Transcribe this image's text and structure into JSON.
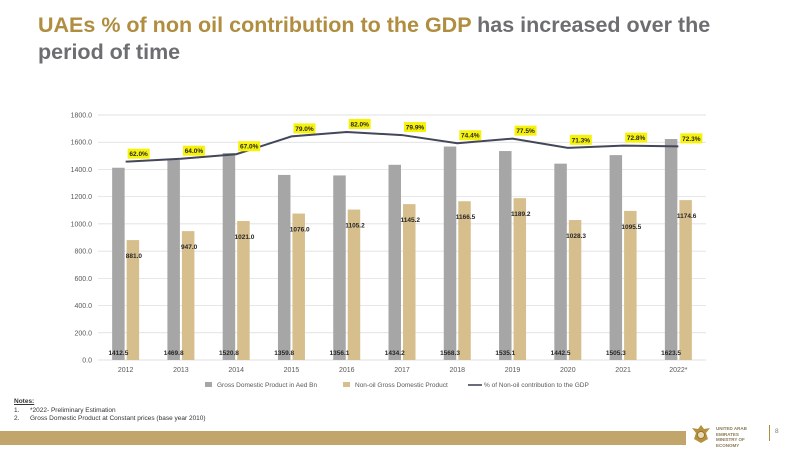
{
  "header": {
    "title_accent": "UAEs % of non oil contribution to the GDP",
    "title_rest": " has increased over the period of time"
  },
  "colors": {
    "gdp_bar": "#a6a6a6",
    "nonoil_bar": "#d6bf8d",
    "line": "#44475a",
    "label_highlight": "#f7f20a",
    "accent": "#b08d3f",
    "footer_bar": "#c2a56a"
  },
  "chart_data": {
    "type": "bar",
    "categories": [
      "2012",
      "2013",
      "2014",
      "2015",
      "2016",
      "2017",
      "2018",
      "2019",
      "2020",
      "2021",
      "2022*"
    ],
    "series": [
      {
        "name": "Gross Domestic Product in Aed Bn",
        "type": "bar",
        "values": [
          1412.5,
          1469.8,
          1520.8,
          1359.8,
          1356.1,
          1434.2,
          1568.3,
          1535.1,
          1442.5,
          1505.3,
          1623.5
        ]
      },
      {
        "name": "Non-oil Gross Domestic Product",
        "type": "bar",
        "values": [
          881.0,
          947.0,
          1021.0,
          1076.0,
          1105.2,
          1145.2,
          1166.5,
          1189.2,
          1028.3,
          1095.5,
          1174.6
        ]
      },
      {
        "name": "% of Non-oil contribution to the GDP",
        "type": "line",
        "values": [
          62.0,
          64.0,
          67.0,
          79.0,
          82.0,
          79.9,
          74.4,
          77.5,
          71.3,
          72.8,
          72.3
        ]
      }
    ],
    "gdp_labels": [
      "1412.5",
      "1469.8",
      "1520.8",
      "1359.8",
      "1356.1",
      "1434.2",
      "1568.3",
      "1535.1",
      "1442.5",
      "1505.3",
      "1623.5"
    ],
    "nonoil_labels": [
      "881.0",
      "947.0",
      "1021.0",
      "1076.0",
      "1105.2",
      "1145.2",
      "1166.5",
      "1189.2",
      "1028.3",
      "1095.5",
      "1174.6"
    ],
    "pct_labels": [
      "62.0%",
      "64.0%",
      "67.0%",
      "79.0%",
      "82.0%",
      "79.9%",
      "74.4%",
      "77.5%",
      "71.3%",
      "72.8%",
      "72.3%"
    ],
    "y_ticks": [
      "0.0",
      "200.0",
      "400.0",
      "600.0",
      "800.0",
      "1000.0",
      "1200.0",
      "1400.0",
      "1600.0",
      "1800.0"
    ],
    "ylim": [
      0,
      1800
    ],
    "pct_scale": [
      -71.4,
      93.4
    ],
    "grid": true,
    "legend_position": "bottom"
  },
  "notes": {
    "heading": "Notes:",
    "items": [
      {
        "num": "1.",
        "text": "*2022- Preliminary Estimation"
      },
      {
        "num": "2.",
        "text": "Gross Domestic Product at Constant prices (base year 2010)"
      }
    ]
  },
  "footer": {
    "ministry_line1": "UNITED ARAB EMIRATES",
    "ministry_line2": "MINISTRY OF ECONOMY",
    "page_number": "8"
  }
}
